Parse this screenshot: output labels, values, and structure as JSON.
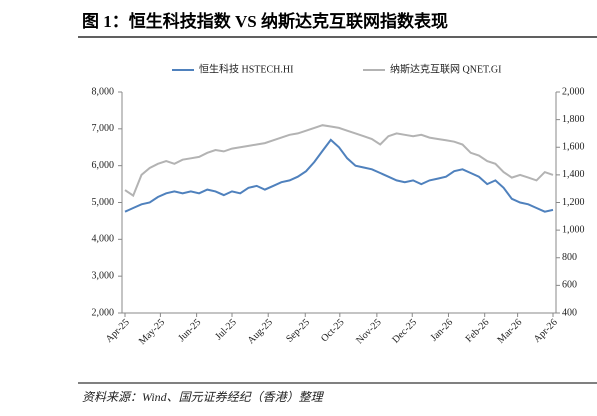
{
  "chart_data": {
    "type": "line",
    "title": "图 1：恒生科技指数 VS 纳斯达克互联网指数表现",
    "source": "资料来源：Wind、国元证券经纪（香港）整理",
    "xlim": [
      0,
      52
    ],
    "xticks": [
      {
        "value": 0,
        "label": "Apr-25"
      },
      {
        "value": 4.3,
        "label": "May-25"
      },
      {
        "value": 8.7,
        "label": "Jun-25"
      },
      {
        "value": 13,
        "label": "Jul-25"
      },
      {
        "value": 17.4,
        "label": "Aug-25"
      },
      {
        "value": 21.9,
        "label": "Sep-25"
      },
      {
        "value": 26.1,
        "label": "Oct-25"
      },
      {
        "value": 30.6,
        "label": "Nov-25"
      },
      {
        "value": 34.9,
        "label": "Dec-25"
      },
      {
        "value": 39.3,
        "label": "Jan-26"
      },
      {
        "value": 43.7,
        "label": "Feb-26"
      },
      {
        "value": 47.7,
        "label": "Mar-26"
      },
      {
        "value": 52,
        "label": "Apr-26"
      }
    ],
    "ylim": [
      2000,
      8000
    ],
    "yticks": [
      {
        "value": 2000,
        "label": "2,000"
      },
      {
        "value": 3000,
        "label": "3,000"
      },
      {
        "value": 4000,
        "label": "4,000"
      },
      {
        "value": 5000,
        "label": "5,000"
      },
      {
        "value": 6000,
        "label": "6,000"
      },
      {
        "value": 7000,
        "label": "7,000"
      },
      {
        "value": 8000,
        "label": "8,000"
      }
    ],
    "y2lim": [
      400,
      2000
    ],
    "y2ticks": [
      400,
      600,
      800,
      {
        "value": 1000,
        "label": "1,000"
      },
      {
        "value": 1200,
        "label": "1,200"
      },
      {
        "value": 1400,
        "label": "1,400"
      },
      {
        "value": 1600,
        "label": "1,600"
      },
      {
        "value": 1800,
        "label": "1,800"
      },
      {
        "value": 2000,
        "label": "2,000"
      }
    ],
    "series": [
      {
        "name": "恒生科技 HSTECH.HI",
        "color": "#4f81bd",
        "values": [
          4750,
          4850,
          4950,
          5000,
          5150,
          5250,
          5300,
          5250,
          5300,
          5250,
          5350,
          5300,
          5200,
          5300,
          5250,
          5400,
          5450,
          5350,
          5450,
          5550,
          5600,
          5700,
          5850,
          6100,
          6400,
          6700,
          6500,
          6200,
          6000,
          5950,
          5900,
          5800,
          5700,
          5600,
          5550,
          5600,
          5500,
          5600,
          5650,
          5700,
          5850,
          5900,
          5800,
          5700,
          5500,
          5600,
          5400,
          5100,
          5000,
          4950,
          4850,
          4750,
          4800
        ]
      },
      {
        "name": "纳斯达克互联网 QNET.GI",
        "color": "#b3b3b3",
        "axis": "y2",
        "values": [
          1290,
          1250,
          1400,
          1450,
          1480,
          1500,
          1480,
          1510,
          1520,
          1530,
          1560,
          1580,
          1570,
          1590,
          1600,
          1610,
          1620,
          1630,
          1650,
          1670,
          1690,
          1700,
          1720,
          1740,
          1760,
          1750,
          1740,
          1720,
          1700,
          1680,
          1660,
          1620,
          1680,
          1700,
          1690,
          1680,
          1690,
          1670,
          1660,
          1650,
          1640,
          1620,
          1560,
          1540,
          1500,
          1480,
          1420,
          1380,
          1400,
          1380,
          1360,
          1420,
          1400
        ]
      }
    ]
  }
}
